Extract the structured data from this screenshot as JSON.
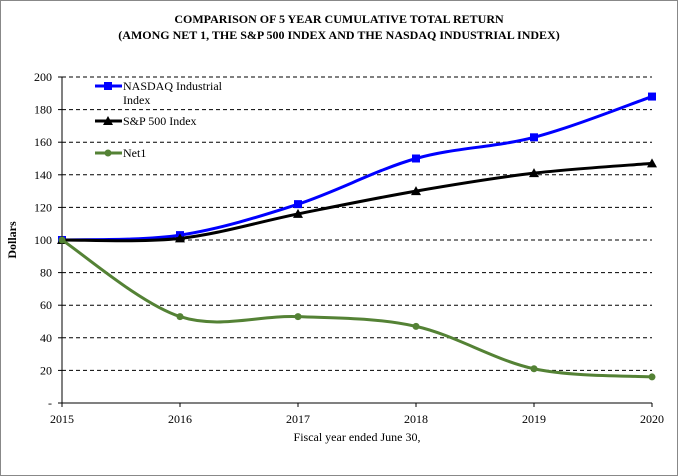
{
  "chart_data": {
    "type": "line",
    "title": "COMPARISON OF 5 YEAR CUMULATIVE TOTAL RETURN",
    "subtitle": "(AMONG NET 1, THE S&P 500 INDEX AND THE NASDAQ INDUSTRIAL INDEX)",
    "xlabel": "Fiscal year ended June 30,",
    "ylabel": "Dollars",
    "x": [
      "2015",
      "2016",
      "2017",
      "2018",
      "2019",
      "2020"
    ],
    "ylim": [
      0,
      200
    ],
    "yticks": [
      0,
      20,
      40,
      60,
      80,
      100,
      120,
      140,
      160,
      180,
      200
    ],
    "ytick_labels": [
      "-",
      "20",
      "40",
      "60",
      "80",
      "100",
      "120",
      "140",
      "160",
      "180",
      "200"
    ],
    "grid": "horizontal dashed",
    "legend_position": "top-left",
    "series": [
      {
        "name": "NASDAQ Industrial Index",
        "name_lines": [
          "NASDAQ Industrial",
          "Index"
        ],
        "color": "#0000ff",
        "marker": "square",
        "values": [
          100,
          103,
          122,
          150,
          163,
          188
        ]
      },
      {
        "name": "S&P 500 Index",
        "name_lines": [
          "S&P 500 Index"
        ],
        "color": "#000000",
        "marker": "triangle",
        "values": [
          100,
          101,
          116,
          130,
          141,
          147
        ]
      },
      {
        "name": "Net1",
        "name_lines": [
          "Net1"
        ],
        "color": "#548235",
        "marker": "circle",
        "values": [
          100,
          53,
          53,
          47,
          21,
          16
        ]
      }
    ]
  }
}
